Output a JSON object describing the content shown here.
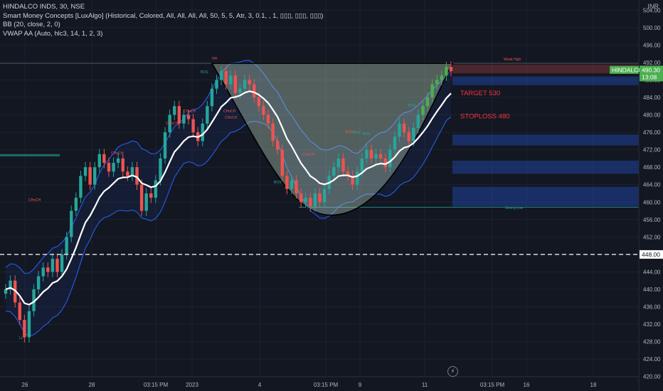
{
  "header": {
    "symbol_line": "HINDALCO INDS, 30, NSE",
    "indicator_1": "Smart Money Concepts [LuxAlgo] (Historical, Colored, All, All, All, All, 50, 5, 5, Atr, 3, 0.1, , 1, ▯▯▯, ▯▯▯, ▯▯▯)",
    "indicator_2": "BB (20, close, 2, 0)",
    "indicator_3": "VWAP AA (Auto, hlc3, 14, 1, 2, 3)",
    "currency": "INR"
  },
  "colors": {
    "background": "#131722",
    "up": "#26a69a",
    "up_bright": "#4caf50",
    "down": "#ef5350",
    "bb_line": "#2962ff",
    "vwap": "#ffffff",
    "cup_fill": "#c8e6c9",
    "zone": "#1e3a6e",
    "annotation": "#f23645",
    "price_badge": "#4caf50",
    "dashed_level": "#ffffff"
  },
  "icons": {
    "replay": "lightning-icon"
  },
  "chart_data": {
    "type": "candlestick",
    "symbol": "HINDALCO INDS",
    "interval": "30",
    "exchange": "NSE",
    "y_axis": {
      "ylim": [
        418,
        506
      ],
      "ticks": [
        "504.00",
        "500.00",
        "496.00",
        "492.00",
        "488.00",
        "484.00",
        "480.00",
        "476.00",
        "472.00",
        "468.00",
        "464.00",
        "460.00",
        "456.00",
        "452.00",
        "448.00",
        "444.00",
        "440.00",
        "436.00",
        "432.00",
        "428.00",
        "424.00",
        "420.00"
      ]
    },
    "x_axis": {
      "tick_labels": [
        "26",
        "28",
        "03:15 PM",
        "2023",
        "4",
        "03:15 PM",
        "9",
        "11",
        "03:15 PM",
        "16",
        "18"
      ]
    },
    "last_price": "490.30",
    "countdown": "13:08",
    "last_price_label": "HINDALCO",
    "dashed_level": "448.00",
    "annotations": {
      "target": "TARGET 530",
      "stoploss": "STOPLOSS 480"
    },
    "smc_labels": [
      "HH",
      "BOS",
      "BOS",
      "CHoCH",
      "CHoCH",
      "CHoCH",
      "CHoCH",
      "CHoCH",
      "CHoCH",
      "CHoCH",
      "BOS",
      "BOS",
      "BOS",
      "EQH",
      "LL",
      "HL",
      "Strong Low",
      "Weak High"
    ],
    "closes": [
      440,
      442,
      437,
      433,
      429,
      435,
      440,
      443,
      445,
      444,
      447,
      444,
      448,
      452,
      458,
      461,
      466,
      468,
      464,
      468,
      471,
      469,
      467,
      469,
      470,
      467,
      466,
      468,
      464,
      458,
      462,
      461,
      465,
      470,
      476,
      480,
      482,
      478,
      480,
      479,
      476,
      474,
      478,
      482,
      486,
      488,
      490,
      487,
      489,
      485,
      486,
      488,
      487,
      484,
      482,
      480,
      478,
      474,
      472,
      466,
      463,
      465,
      462,
      460,
      461,
      459,
      462,
      460,
      463,
      466,
      468,
      470,
      467,
      466,
      464,
      467,
      470,
      472,
      470,
      471,
      470,
      468,
      472,
      475,
      478,
      476,
      474,
      477,
      480,
      482,
      484,
      487,
      488,
      489,
      491,
      490
    ]
  }
}
